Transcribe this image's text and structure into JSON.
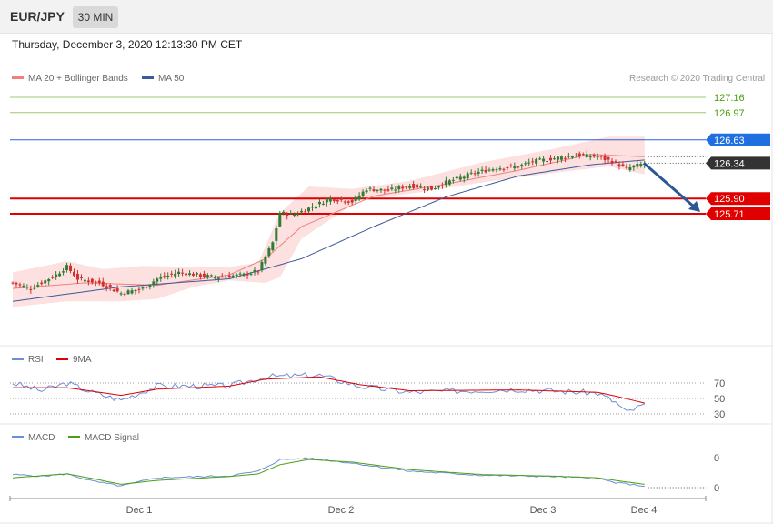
{
  "header": {
    "symbol": "EUR/JPY",
    "timeframe": "30 MIN"
  },
  "datetime": "Thursday, December 3, 2020 12:13:30 PM CET",
  "credit": "Research © 2020 Trading Central",
  "colors": {
    "ma20": "#f08080",
    "ma50": "#3c5a99",
    "rsi": "#6b8fd6",
    "rsi_ma": "#e00000",
    "macd": "#6b8fd6",
    "macd_signal": "#4aa012",
    "up": "#2e7d32",
    "down": "#d32f2f",
    "band": "#fde0e0",
    "resistance": "#9bcc6b",
    "support": "#e00000",
    "blue_level": "#2a62d8",
    "arrow": "#2b5797"
  },
  "price_panel": {
    "legend": [
      {
        "label": "MA 20 + Bollinger Bands",
        "color": "#f08080"
      },
      {
        "label": "MA 50",
        "color": "#3c5a99"
      }
    ],
    "levels": [
      {
        "value": 127.16,
        "label": "127.16",
        "kind": "resistance"
      },
      {
        "value": 126.97,
        "label": "126.97",
        "kind": "resistance"
      },
      {
        "value": 126.63,
        "label": "126.63",
        "kind": "pivot"
      },
      {
        "value": 126.34,
        "label": "126.34",
        "kind": "last"
      },
      {
        "value": 125.9,
        "label": "125.90",
        "kind": "support"
      },
      {
        "value": 125.71,
        "label": "125.71",
        "kind": "support"
      }
    ]
  },
  "rsi_panel": {
    "legend": [
      {
        "label": "RSI",
        "color": "#6b8fd6"
      },
      {
        "label": "9MA",
        "color": "#e00000"
      }
    ],
    "ticks": [
      "70",
      "50",
      "30"
    ]
  },
  "macd_panel": {
    "legend": [
      {
        "label": "MACD",
        "color": "#6b8fd6"
      },
      {
        "label": "MACD Signal",
        "color": "#4aa012"
      }
    ],
    "ticks": [
      "0",
      "0"
    ]
  },
  "x_axis": {
    "labels": [
      "Dec 1",
      "Dec 2",
      "Dec 3",
      "Dec 4"
    ]
  },
  "chart_data": {
    "type": "line",
    "title": "EUR/JPY",
    "timeframe": "30 MIN",
    "x_labels": [
      "Dec 1",
      "Dec 2",
      "Dec 3",
      "Dec 4"
    ],
    "price_anchors": [
      [
        0,
        124.85
      ],
      [
        5,
        124.78
      ],
      [
        12,
        124.95
      ],
      [
        15,
        125.05
      ],
      [
        18,
        124.9
      ],
      [
        24,
        124.85
      ],
      [
        30,
        124.72
      ],
      [
        36,
        124.78
      ],
      [
        40,
        124.9
      ],
      [
        46,
        124.98
      ],
      [
        56,
        124.92
      ],
      [
        64,
        124.95
      ],
      [
        68,
        125.0
      ],
      [
        72,
        125.35
      ],
      [
        74,
        125.72
      ],
      [
        78,
        125.7
      ],
      [
        82,
        125.78
      ],
      [
        88,
        125.9
      ],
      [
        94,
        125.86
      ],
      [
        98,
        126.02
      ],
      [
        104,
        126.0
      ],
      [
        110,
        126.06
      ],
      [
        116,
        126.02
      ],
      [
        120,
        126.1
      ],
      [
        124,
        126.16
      ],
      [
        128,
        126.22
      ],
      [
        134,
        126.28
      ],
      [
        140,
        126.3
      ],
      [
        144,
        126.36
      ],
      [
        150,
        126.4
      ],
      [
        156,
        126.44
      ],
      [
        162,
        126.42
      ],
      [
        166,
        126.36
      ],
      [
        170,
        126.27
      ],
      [
        175,
        126.34
      ]
    ],
    "ma50_anchors": [
      [
        0,
        124.62
      ],
      [
        30,
        124.8
      ],
      [
        60,
        124.9
      ],
      [
        80,
        125.15
      ],
      [
        100,
        125.55
      ],
      [
        120,
        125.92
      ],
      [
        140,
        126.18
      ],
      [
        160,
        126.32
      ],
      [
        175,
        126.38
      ]
    ],
    "ma20_anchors": [
      [
        0,
        124.78
      ],
      [
        20,
        124.85
      ],
      [
        40,
        124.82
      ],
      [
        60,
        124.95
      ],
      [
        70,
        125.15
      ],
      [
        80,
        125.55
      ],
      [
        100,
        125.93
      ],
      [
        120,
        126.08
      ],
      [
        140,
        126.25
      ],
      [
        160,
        126.45
      ],
      [
        175,
        126.42
      ]
    ],
    "band_upper_anchors": [
      [
        0,
        124.98
      ],
      [
        15,
        125.12
      ],
      [
        25,
        125.02
      ],
      [
        36,
        125.06
      ],
      [
        48,
        125.05
      ],
      [
        60,
        125.05
      ],
      [
        68,
        125.1
      ],
      [
        74,
        125.72
      ],
      [
        82,
        126.05
      ],
      [
        94,
        126.02
      ],
      [
        110,
        126.12
      ],
      [
        130,
        126.35
      ],
      [
        150,
        126.52
      ],
      [
        165,
        126.67
      ],
      [
        175,
        126.67
      ]
    ],
    "band_lower_anchors": [
      [
        0,
        124.55
      ],
      [
        15,
        124.62
      ],
      [
        30,
        124.62
      ],
      [
        40,
        124.65
      ],
      [
        50,
        124.8
      ],
      [
        60,
        124.88
      ],
      [
        70,
        124.85
      ],
      [
        74,
        124.92
      ],
      [
        80,
        125.4
      ],
      [
        96,
        125.88
      ],
      [
        110,
        125.96
      ],
      [
        130,
        126.1
      ],
      [
        150,
        126.22
      ],
      [
        165,
        126.3
      ],
      [
        175,
        126.2
      ]
    ],
    "rsi_anchors": [
      [
        0,
        70
      ],
      [
        8,
        60
      ],
      [
        15,
        70
      ],
      [
        22,
        58
      ],
      [
        30,
        48
      ],
      [
        40,
        66
      ],
      [
        60,
        66
      ],
      [
        70,
        78
      ],
      [
        85,
        80
      ],
      [
        96,
        66
      ],
      [
        110,
        58
      ],
      [
        140,
        62
      ],
      [
        162,
        57
      ],
      [
        167,
        45
      ],
      [
        170,
        32
      ],
      [
        175,
        42
      ]
    ],
    "rsi_ma_anchors": [
      [
        0,
        64
      ],
      [
        15,
        64
      ],
      [
        30,
        54
      ],
      [
        40,
        62
      ],
      [
        60,
        66
      ],
      [
        70,
        75
      ],
      [
        85,
        78
      ],
      [
        96,
        68
      ],
      [
        110,
        60
      ],
      [
        140,
        61
      ],
      [
        162,
        58
      ],
      [
        167,
        53
      ],
      [
        175,
        44
      ]
    ],
    "macd_anchors": [
      [
        0,
        0.4
      ],
      [
        8,
        0.35
      ],
      [
        15,
        0.42
      ],
      [
        22,
        0.2
      ],
      [
        30,
        0.05
      ],
      [
        40,
        0.3
      ],
      [
        60,
        0.36
      ],
      [
        68,
        0.5
      ],
      [
        74,
        0.85
      ],
      [
        82,
        0.9
      ],
      [
        94,
        0.75
      ],
      [
        110,
        0.5
      ],
      [
        130,
        0.38
      ],
      [
        150,
        0.34
      ],
      [
        162,
        0.28
      ],
      [
        167,
        0.15
      ],
      [
        175,
        0.05
      ]
    ],
    "macd_signal_anchors": [
      [
        0,
        0.3
      ],
      [
        15,
        0.42
      ],
      [
        22,
        0.28
      ],
      [
        30,
        0.1
      ],
      [
        40,
        0.22
      ],
      [
        60,
        0.34
      ],
      [
        68,
        0.42
      ],
      [
        74,
        0.7
      ],
      [
        82,
        0.86
      ],
      [
        94,
        0.78
      ],
      [
        110,
        0.55
      ],
      [
        130,
        0.4
      ],
      [
        150,
        0.35
      ],
      [
        162,
        0.3
      ],
      [
        167,
        0.22
      ],
      [
        175,
        0.1
      ]
    ],
    "forecast": {
      "from": 126.34,
      "to": 125.71
    }
  }
}
